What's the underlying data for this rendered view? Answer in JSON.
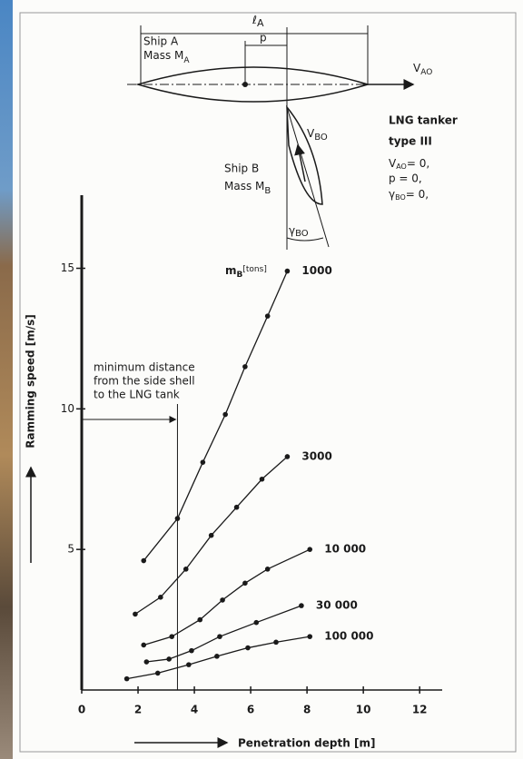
{
  "chart_data": {
    "type": "line",
    "x_label": "Penetration depth [m]",
    "y_label": "Ramming speed [m/s]",
    "legend_title": {
      "text": "m",
      "sub": "B",
      "unit": "[tons]"
    },
    "xlim": [
      0,
      12.8
    ],
    "ylim": [
      0,
      17.6
    ],
    "xticks": [
      0,
      2,
      4,
      6,
      8,
      10,
      12
    ],
    "yticks": [
      5,
      10,
      15
    ],
    "color": "#1a1a1a",
    "series": [
      {
        "name": "1000",
        "x": [
          2.2,
          3.4,
          4.3,
          5.1,
          5.8,
          6.6,
          7.3
        ],
        "values": [
          4.6,
          6.1,
          8.1,
          9.8,
          11.5,
          13.3,
          14.9
        ]
      },
      {
        "name": "3000",
        "x": [
          1.9,
          2.8,
          3.7,
          4.6,
          5.5,
          6.4,
          7.3
        ],
        "values": [
          2.7,
          3.3,
          4.3,
          5.5,
          6.5,
          7.5,
          8.3
        ]
      },
      {
        "name": "10 000",
        "x": [
          2.2,
          3.2,
          4.2,
          5.0,
          5.8,
          6.6,
          8.1
        ],
        "values": [
          1.6,
          1.9,
          2.5,
          3.2,
          3.8,
          4.3,
          5.0
        ]
      },
      {
        "name": "30 000",
        "x": [
          2.3,
          3.1,
          3.9,
          4.9,
          6.2,
          7.8
        ],
        "values": [
          1.0,
          1.1,
          1.4,
          1.9,
          2.4,
          3.0
        ]
      },
      {
        "name": "100 000",
        "x": [
          1.6,
          2.7,
          3.8,
          4.8,
          5.9,
          6.9,
          8.1
        ],
        "values": [
          0.4,
          0.6,
          0.9,
          1.2,
          1.5,
          1.7,
          1.9
        ]
      }
    ],
    "annotation": {
      "lines": [
        "minimum distance",
        "from the side shell",
        "to the LNG tank"
      ],
      "x": 3.4
    }
  },
  "diagram": {
    "length": {
      "text": "ℓ",
      "sub": "A"
    },
    "p": "p",
    "ship_a": "Ship A",
    "mass_a": {
      "text": "Mass M",
      "sub": "A"
    },
    "v_ao": {
      "text": "V",
      "sub": "AO"
    },
    "ship_b": "Ship B",
    "mass_b": {
      "text": "Mass M",
      "sub": "B"
    },
    "v_bo": {
      "text": "V",
      "sub": "BO"
    },
    "gamma_bo": {
      "text": "γ",
      "sub": "BO"
    },
    "title_1": "LNG tanker",
    "title_2": "type III",
    "cond_1": {
      "text": "V",
      "sub": "AO",
      "rest": "= 0,"
    },
    "cond_2": "p = 0,",
    "cond_3": {
      "text": "γ",
      "sub": "BO",
      "rest": "= 0,"
    }
  }
}
